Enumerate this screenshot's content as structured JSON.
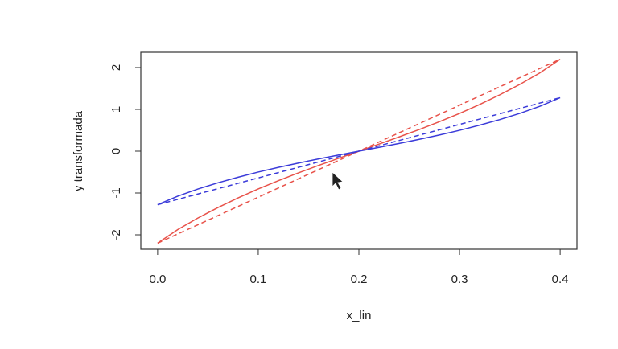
{
  "chart_data": {
    "type": "line",
    "x_label": "x_lin",
    "y_label": "y transformada",
    "x": [
      0,
      0.02,
      0.04,
      0.06,
      0.08,
      0.1,
      0.12,
      0.14,
      0.16,
      0.18,
      0.2,
      0.22,
      0.24,
      0.26,
      0.28,
      0.3,
      0.32,
      0.34,
      0.36,
      0.38,
      0.4
    ],
    "series": [
      {
        "color": "#e8524a",
        "linestyle": "solid",
        "values": [
          -2.2,
          -1.874,
          -1.598,
          -1.348,
          -1.117,
          -0.903,
          -0.705,
          -0.518,
          -0.341,
          -0.169,
          0,
          0.169,
          0.341,
          0.518,
          0.705,
          0.903,
          1.117,
          1.348,
          1.598,
          1.874,
          2.2
        ]
      },
      {
        "color": "#e8524a",
        "linestyle": "dashed",
        "values": [
          -2.2,
          -1.98,
          -1.76,
          -1.54,
          -1.32,
          -1.1,
          -0.88,
          -0.66,
          -0.44,
          -0.22,
          0,
          0.22,
          0.44,
          0.66,
          0.88,
          1.1,
          1.32,
          1.54,
          1.76,
          1.98,
          2.2
        ]
      },
      {
        "color": "#3b3bd9",
        "linestyle": "solid",
        "values": [
          -1.28,
          -1.075,
          -0.905,
          -0.756,
          -0.622,
          -0.499,
          -0.387,
          -0.283,
          -0.185,
          -0.092,
          0,
          0.092,
          0.185,
          0.283,
          0.387,
          0.499,
          0.622,
          0.756,
          0.905,
          1.075,
          1.28
        ]
      },
      {
        "color": "#3b3bd9",
        "linestyle": "dashed",
        "values": [
          -1.28,
          -1.152,
          -1.024,
          -0.896,
          -0.768,
          -0.64,
          -0.512,
          -0.384,
          -0.256,
          -0.128,
          0,
          0.128,
          0.256,
          0.384,
          0.512,
          0.64,
          0.768,
          0.896,
          1.024,
          1.152,
          1.28
        ]
      }
    ],
    "xlim": [
      -0.0167,
      0.4167
    ],
    "ylim": [
      -2.346,
      2.365
    ],
    "xticks": [
      {
        "value": 0,
        "label": "0.0"
      },
      0.1,
      0.2,
      0.3,
      0.4
    ],
    "yticks": [
      -2,
      -1,
      0,
      1,
      2
    ]
  }
}
